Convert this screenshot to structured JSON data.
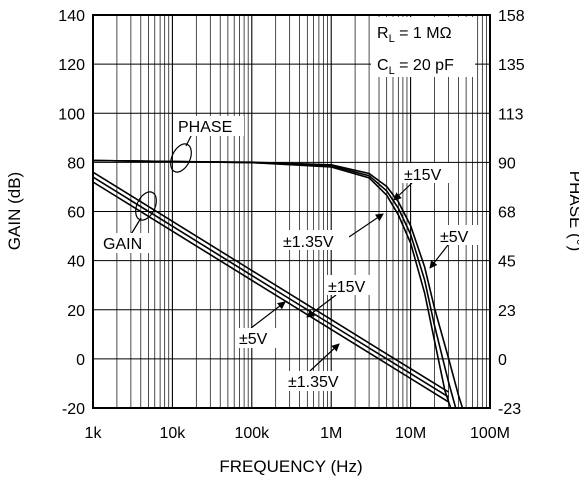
{
  "chart_data": {
    "type": "line",
    "xlabel": "FREQUENCY (Hz)",
    "ylabel": "GAIN (dB)",
    "y2label": "PHASE (°)",
    "x_scale": "log",
    "xlim": [
      1000,
      100000000
    ],
    "ylim": [
      -20,
      140
    ],
    "x_ticks": [
      "1k",
      "10k",
      "100k",
      "1M",
      "10M",
      "100M"
    ],
    "y_ticks": [
      "140",
      "120",
      "100",
      "80",
      "60",
      "40",
      "20",
      "0",
      "-20"
    ],
    "y2_ticks": [
      "158",
      "135",
      "113",
      "90",
      "68",
      "45",
      "23",
      "0",
      "-23"
    ],
    "grid": true,
    "conditions": {
      "rl": "R",
      "rl_sub": "L",
      "rl_val": " = 1 MΩ",
      "cl": "C",
      "cl_sub": "L",
      "cl_val": " = 20 pF"
    },
    "labels": {
      "phase": "PHASE",
      "gain": "GAIN",
      "v15_phase": "±15V",
      "v135_phase": "±1.35V",
      "v5_phase": "±5V",
      "v15_gain": "±15V",
      "v5_gain": "±5V",
      "v135_gain": "±1.35V"
    },
    "series": [
      {
        "name": "±1.35V",
        "kind": "gain",
        "x": [
          1000,
          10000,
          100000,
          1000000,
          10000000,
          30000000
        ],
        "y": [
          72,
          52,
          32,
          12,
          -8,
          -17.5
        ]
      },
      {
        "name": "±15V",
        "kind": "gain",
        "x": [
          1000,
          10000,
          100000,
          1000000,
          10000000,
          30000000
        ],
        "y": [
          74,
          54,
          34,
          14,
          -6,
          -15.5
        ]
      },
      {
        "name": "±5V",
        "kind": "gain",
        "x": [
          1000,
          10000,
          100000,
          1000000,
          10000000,
          30000000
        ],
        "y": [
          76,
          56,
          36,
          16,
          -4,
          -13.5
        ]
      },
      {
        "name": "±1.35V",
        "kind": "phase",
        "x": [
          1000,
          10000,
          100000,
          1000000,
          3000000,
          5000000,
          7000000,
          10000000,
          15000000,
          20000000,
          27000000,
          32000000
        ],
        "y": [
          91,
          90.5,
          90,
          88,
          83,
          75,
          66,
          53,
          30,
          8,
          -15,
          -23
        ]
      },
      {
        "name": "±15V",
        "kind": "phase",
        "x": [
          1000,
          10000,
          100000,
          1000000,
          3000000,
          5000000,
          7000000,
          10000000,
          15000000,
          20000000,
          30000000,
          37000000
        ],
        "y": [
          91,
          90.5,
          90,
          88.5,
          84,
          77,
          69,
          57,
          36,
          15,
          -11,
          -23
        ]
      },
      {
        "name": "±5V",
        "kind": "phase",
        "x": [
          1000,
          10000,
          100000,
          1000000,
          3000000,
          5000000,
          7000000,
          10000000,
          15000000,
          20000000,
          30000000,
          40000000,
          45000000
        ],
        "y": [
          91,
          90.5,
          90.2,
          89,
          85,
          79,
          72,
          61,
          42,
          23,
          0,
          -17,
          -23
        ]
      }
    ]
  }
}
